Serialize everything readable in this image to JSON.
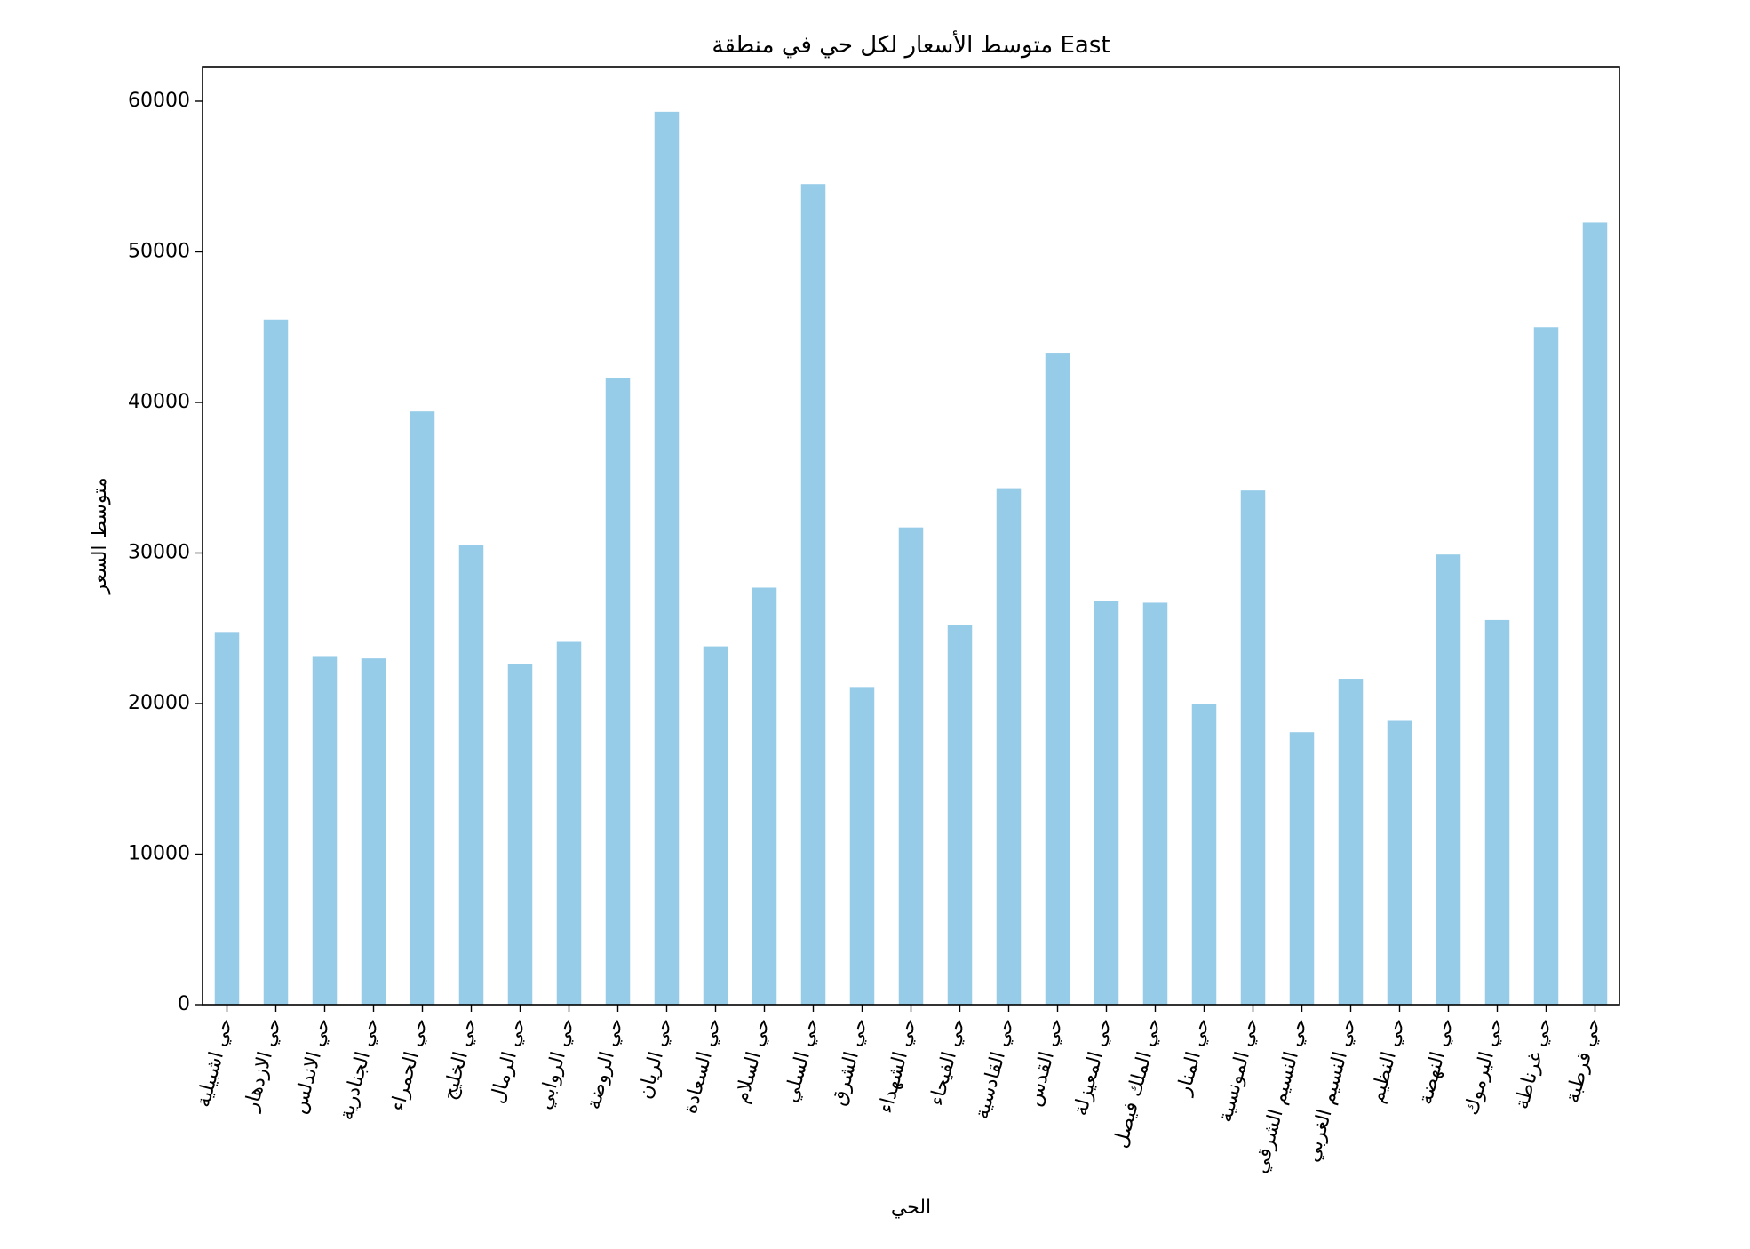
{
  "chart_data": {
    "type": "bar",
    "title": "متوسط الأسعار لكل حي في منطقة East",
    "xlabel": "الحي",
    "ylabel": "متوسط السعر",
    "ylim": [
      0,
      62300
    ],
    "yticks": [
      0,
      10000,
      20000,
      30000,
      40000,
      50000,
      60000
    ],
    "ytick_labels": [
      "0",
      "10000",
      "20000",
      "30000",
      "40000",
      "50000",
      "60000"
    ],
    "grid": false,
    "bar_color": "#97cce8",
    "categories": [
      "حي اشبيلية",
      "حي الازدهار",
      "حي الاندلس",
      "حي الجنادرية",
      "حي الحمراء",
      "حي الخليج",
      "حي الرمال",
      "حي الروابي",
      "حي الروضة",
      "حي الريان",
      "حي السعادة",
      "حي السلام",
      "حي السلي",
      "حي الشرق",
      "حي الشهداء",
      "حي الفيحاء",
      "حي القادسية",
      "حي القدس",
      "حي المعيزلة",
      "حي الملك فيصل",
      "حي المنار",
      "حي المونسية",
      "حي النسيم الشرقي",
      "حي النسيم الغربي",
      "حي النظيم",
      "حي النهضة",
      "حي اليرموك",
      "حي غرناطة",
      "حي قرطبة"
    ],
    "values": [
      24700,
      45500,
      23100,
      23000,
      39400,
      30500,
      22600,
      24100,
      41600,
      59300,
      23800,
      27700,
      54500,
      21100,
      31700,
      25200,
      34300,
      43300,
      26800,
      26700,
      19950,
      34150,
      18100,
      21650,
      18850,
      29900,
      25550,
      45000,
      51950
    ]
  }
}
